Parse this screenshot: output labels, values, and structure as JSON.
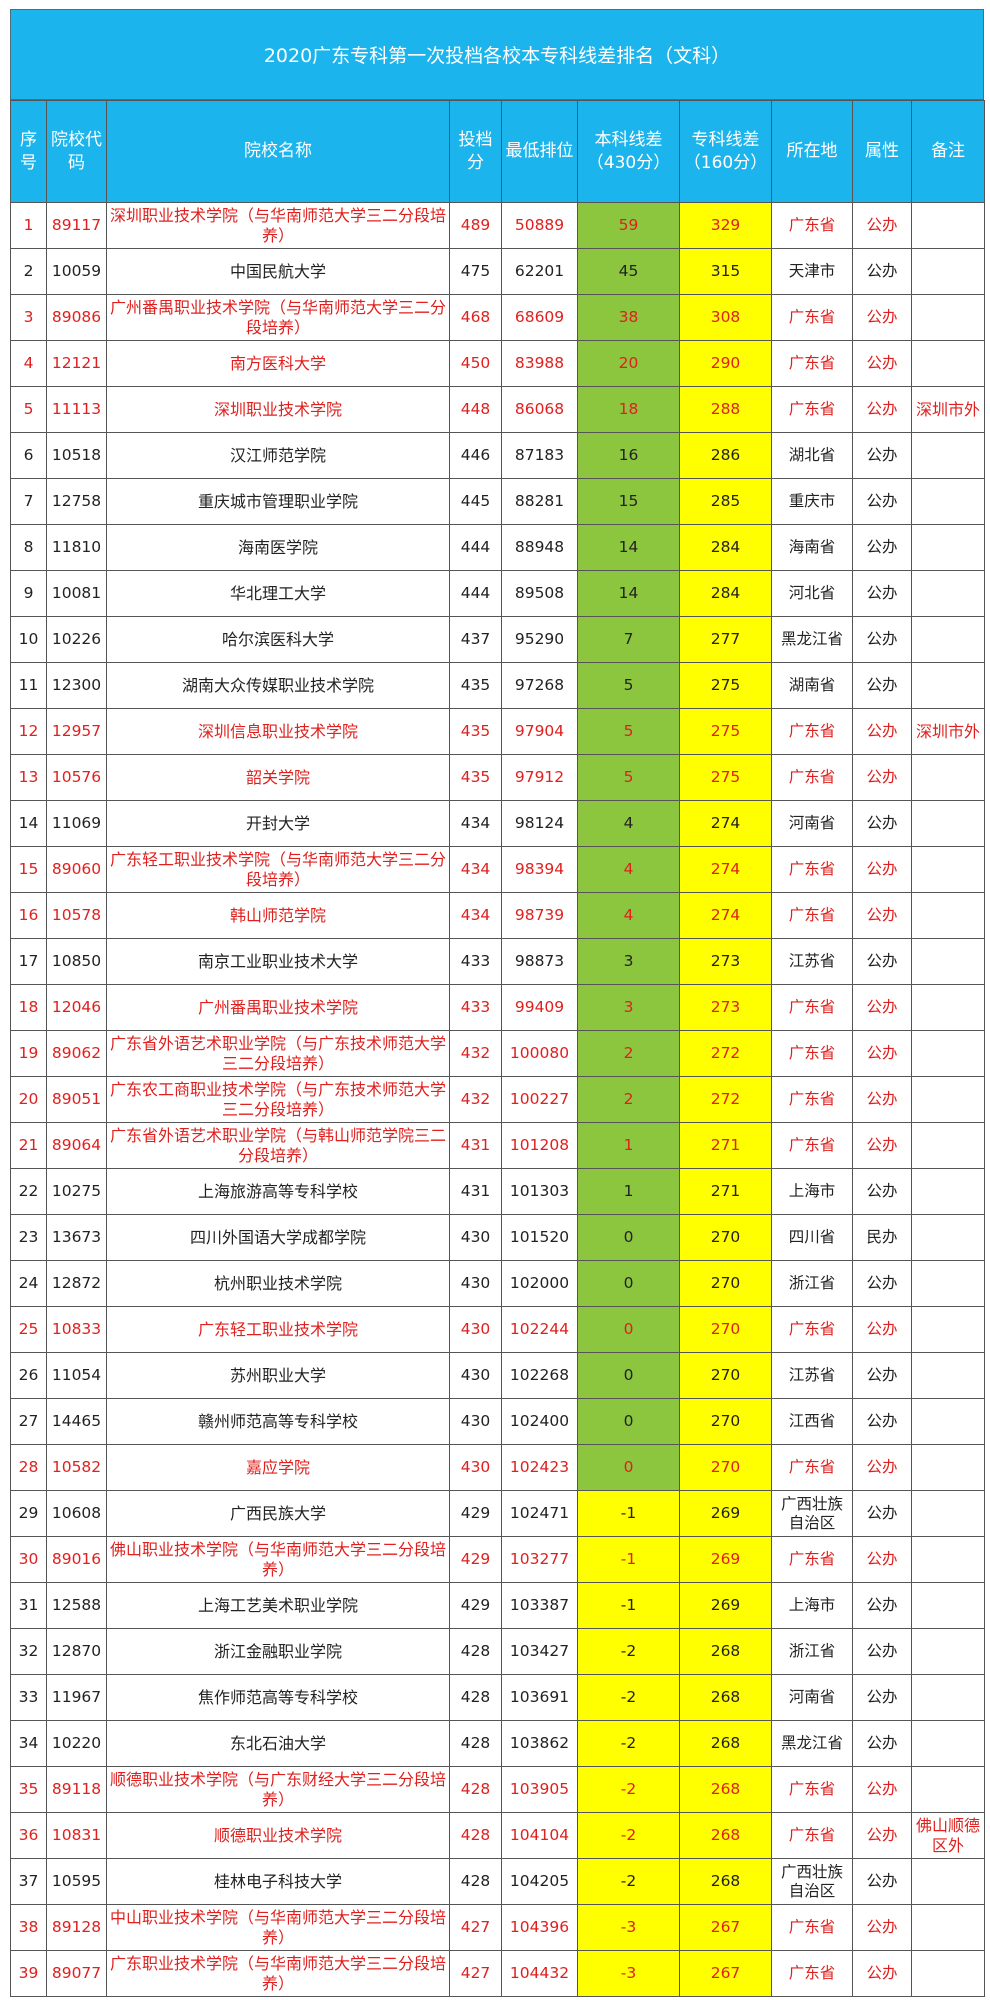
{
  "title": "2020广东专科第一次投档各校本专科线差排名（文科）",
  "headers": [
    "序号",
    "院校代码",
    "院校名称",
    "投档分",
    "最低排位",
    "本科线差（430分）",
    "专科线差（160分）",
    "所在地",
    "属性",
    "备注"
  ],
  "colors": {
    "header_bg": "#1cb4ec",
    "positive_diff_bg": "#8cc63e",
    "diff_bg": "#ffff00",
    "highlight_text": "#e0201e"
  },
  "rows": [
    {
      "no": "1",
      "code": "89117",
      "name": "深圳职业技术学院（与华南师范大学三二分段培养）",
      "score": "489",
      "rank": "50889",
      "ben": "59",
      "zhuan": "329",
      "loc": "广东省",
      "type": "公办",
      "note": "",
      "red": true
    },
    {
      "no": "2",
      "code": "10059",
      "name": "中国民航大学",
      "score": "475",
      "rank": "62201",
      "ben": "45",
      "zhuan": "315",
      "loc": "天津市",
      "type": "公办",
      "note": "",
      "red": false
    },
    {
      "no": "3",
      "code": "89086",
      "name": "广州番禺职业技术学院（与华南师范大学三二分段培养）",
      "score": "468",
      "rank": "68609",
      "ben": "38",
      "zhuan": "308",
      "loc": "广东省",
      "type": "公办",
      "note": "",
      "red": true
    },
    {
      "no": "4",
      "code": "12121",
      "name": "南方医科大学",
      "score": "450",
      "rank": "83988",
      "ben": "20",
      "zhuan": "290",
      "loc": "广东省",
      "type": "公办",
      "note": "",
      "red": true
    },
    {
      "no": "5",
      "code": "11113",
      "name": "深圳职业技术学院",
      "score": "448",
      "rank": "86068",
      "ben": "18",
      "zhuan": "288",
      "loc": "广东省",
      "type": "公办",
      "note": "深圳市外",
      "red": true
    },
    {
      "no": "6",
      "code": "10518",
      "name": "汉江师范学院",
      "score": "446",
      "rank": "87183",
      "ben": "16",
      "zhuan": "286",
      "loc": "湖北省",
      "type": "公办",
      "note": "",
      "red": false
    },
    {
      "no": "7",
      "code": "12758",
      "name": "重庆城市管理职业学院",
      "score": "445",
      "rank": "88281",
      "ben": "15",
      "zhuan": "285",
      "loc": "重庆市",
      "type": "公办",
      "note": "",
      "red": false
    },
    {
      "no": "8",
      "code": "11810",
      "name": "海南医学院",
      "score": "444",
      "rank": "88948",
      "ben": "14",
      "zhuan": "284",
      "loc": "海南省",
      "type": "公办",
      "note": "",
      "red": false
    },
    {
      "no": "9",
      "code": "10081",
      "name": "华北理工大学",
      "score": "444",
      "rank": "89508",
      "ben": "14",
      "zhuan": "284",
      "loc": "河北省",
      "type": "公办",
      "note": "",
      "red": false
    },
    {
      "no": "10",
      "code": "10226",
      "name": "哈尔滨医科大学",
      "score": "437",
      "rank": "95290",
      "ben": "7",
      "zhuan": "277",
      "loc": "黑龙江省",
      "type": "公办",
      "note": "",
      "red": false
    },
    {
      "no": "11",
      "code": "12300",
      "name": "湖南大众传媒职业技术学院",
      "score": "435",
      "rank": "97268",
      "ben": "5",
      "zhuan": "275",
      "loc": "湖南省",
      "type": "公办",
      "note": "",
      "red": false
    },
    {
      "no": "12",
      "code": "12957",
      "name": "深圳信息职业技术学院",
      "score": "435",
      "rank": "97904",
      "ben": "5",
      "zhuan": "275",
      "loc": "广东省",
      "type": "公办",
      "note": "深圳市外",
      "red": true
    },
    {
      "no": "13",
      "code": "10576",
      "name": "韶关学院",
      "score": "435",
      "rank": "97912",
      "ben": "5",
      "zhuan": "275",
      "loc": "广东省",
      "type": "公办",
      "note": "",
      "red": true
    },
    {
      "no": "14",
      "code": "11069",
      "name": "开封大学",
      "score": "434",
      "rank": "98124",
      "ben": "4",
      "zhuan": "274",
      "loc": "河南省",
      "type": "公办",
      "note": "",
      "red": false
    },
    {
      "no": "15",
      "code": "89060",
      "name": "广东轻工职业技术学院（与华南师范大学三二分段培养）",
      "score": "434",
      "rank": "98394",
      "ben": "4",
      "zhuan": "274",
      "loc": "广东省",
      "type": "公办",
      "note": "",
      "red": true
    },
    {
      "no": "16",
      "code": "10578",
      "name": "韩山师范学院",
      "score": "434",
      "rank": "98739",
      "ben": "4",
      "zhuan": "274",
      "loc": "广东省",
      "type": "公办",
      "note": "",
      "red": true
    },
    {
      "no": "17",
      "code": "10850",
      "name": "南京工业职业技术大学",
      "score": "433",
      "rank": "98873",
      "ben": "3",
      "zhuan": "273",
      "loc": "江苏省",
      "type": "公办",
      "note": "",
      "red": false
    },
    {
      "no": "18",
      "code": "12046",
      "name": "广州番禺职业技术学院",
      "score": "433",
      "rank": "99409",
      "ben": "3",
      "zhuan": "273",
      "loc": "广东省",
      "type": "公办",
      "note": "",
      "red": true
    },
    {
      "no": "19",
      "code": "89062",
      "name": "广东省外语艺术职业学院（与广东技术师范大学三二分段培养）",
      "score": "432",
      "rank": "100080",
      "ben": "2",
      "zhuan": "272",
      "loc": "广东省",
      "type": "公办",
      "note": "",
      "red": true
    },
    {
      "no": "20",
      "code": "89051",
      "name": "广东农工商职业技术学院（与广东技术师范大学三二分段培养）",
      "score": "432",
      "rank": "100227",
      "ben": "2",
      "zhuan": "272",
      "loc": "广东省",
      "type": "公办",
      "note": "",
      "red": true
    },
    {
      "no": "21",
      "code": "89064",
      "name": "广东省外语艺术职业学院（与韩山师范学院三二分段培养）",
      "score": "431",
      "rank": "101208",
      "ben": "1",
      "zhuan": "271",
      "loc": "广东省",
      "type": "公办",
      "note": "",
      "red": true
    },
    {
      "no": "22",
      "code": "10275",
      "name": "上海旅游高等专科学校",
      "score": "431",
      "rank": "101303",
      "ben": "1",
      "zhuan": "271",
      "loc": "上海市",
      "type": "公办",
      "note": "",
      "red": false
    },
    {
      "no": "23",
      "code": "13673",
      "name": "四川外国语大学成都学院",
      "score": "430",
      "rank": "101520",
      "ben": "0",
      "zhuan": "270",
      "loc": "四川省",
      "type": "民办",
      "note": "",
      "red": false
    },
    {
      "no": "24",
      "code": "12872",
      "name": "杭州职业技术学院",
      "score": "430",
      "rank": "102000",
      "ben": "0",
      "zhuan": "270",
      "loc": "浙江省",
      "type": "公办",
      "note": "",
      "red": false
    },
    {
      "no": "25",
      "code": "10833",
      "name": "广东轻工职业技术学院",
      "score": "430",
      "rank": "102244",
      "ben": "0",
      "zhuan": "270",
      "loc": "广东省",
      "type": "公办",
      "note": "",
      "red": true
    },
    {
      "no": "26",
      "code": "11054",
      "name": "苏州职业大学",
      "score": "430",
      "rank": "102268",
      "ben": "0",
      "zhuan": "270",
      "loc": "江苏省",
      "type": "公办",
      "note": "",
      "red": false
    },
    {
      "no": "27",
      "code": "14465",
      "name": "赣州师范高等专科学校",
      "score": "430",
      "rank": "102400",
      "ben": "0",
      "zhuan": "270",
      "loc": "江西省",
      "type": "公办",
      "note": "",
      "red": false
    },
    {
      "no": "28",
      "code": "10582",
      "name": "嘉应学院",
      "score": "430",
      "rank": "102423",
      "ben": "0",
      "zhuan": "270",
      "loc": "广东省",
      "type": "公办",
      "note": "",
      "red": true
    },
    {
      "no": "29",
      "code": "10608",
      "name": "广西民族大学",
      "score": "429",
      "rank": "102471",
      "ben": "-1",
      "zhuan": "269",
      "loc": "广西壮族自治区",
      "type": "公办",
      "note": "",
      "red": false
    },
    {
      "no": "30",
      "code": "89016",
      "name": "佛山职业技术学院（与华南师范大学三二分段培养）",
      "score": "429",
      "rank": "103277",
      "ben": "-1",
      "zhuan": "269",
      "loc": "广东省",
      "type": "公办",
      "note": "",
      "red": true
    },
    {
      "no": "31",
      "code": "12588",
      "name": "上海工艺美术职业学院",
      "score": "429",
      "rank": "103387",
      "ben": "-1",
      "zhuan": "269",
      "loc": "上海市",
      "type": "公办",
      "note": "",
      "red": false
    },
    {
      "no": "32",
      "code": "12870",
      "name": "浙江金融职业学院",
      "score": "428",
      "rank": "103427",
      "ben": "-2",
      "zhuan": "268",
      "loc": "浙江省",
      "type": "公办",
      "note": "",
      "red": false
    },
    {
      "no": "33",
      "code": "11967",
      "name": "焦作师范高等专科学校",
      "score": "428",
      "rank": "103691",
      "ben": "-2",
      "zhuan": "268",
      "loc": "河南省",
      "type": "公办",
      "note": "",
      "red": false
    },
    {
      "no": "34",
      "code": "10220",
      "name": "东北石油大学",
      "score": "428",
      "rank": "103862",
      "ben": "-2",
      "zhuan": "268",
      "loc": "黑龙江省",
      "type": "公办",
      "note": "",
      "red": false
    },
    {
      "no": "35",
      "code": "89118",
      "name": "顺德职业技术学院（与广东财经大学三二分段培养）",
      "score": "428",
      "rank": "103905",
      "ben": "-2",
      "zhuan": "268",
      "loc": "广东省",
      "type": "公办",
      "note": "",
      "red": true
    },
    {
      "no": "36",
      "code": "10831",
      "name": "顺德职业技术学院",
      "score": "428",
      "rank": "104104",
      "ben": "-2",
      "zhuan": "268",
      "loc": "广东省",
      "type": "公办",
      "note": "佛山顺德区外",
      "red": true
    },
    {
      "no": "37",
      "code": "10595",
      "name": "桂林电子科技大学",
      "score": "428",
      "rank": "104205",
      "ben": "-2",
      "zhuan": "268",
      "loc": "广西壮族自治区",
      "type": "公办",
      "note": "",
      "red": false
    },
    {
      "no": "38",
      "code": "89128",
      "name": "中山职业技术学院（与华南师范大学三二分段培养）",
      "score": "427",
      "rank": "104396",
      "ben": "-3",
      "zhuan": "267",
      "loc": "广东省",
      "type": "公办",
      "note": "",
      "red": true
    },
    {
      "no": "39",
      "code": "89077",
      "name": "广东职业技术学院（与华南师范大学三二分段培养）",
      "score": "427",
      "rank": "104432",
      "ben": "-3",
      "zhuan": "267",
      "loc": "广东省",
      "type": "公办",
      "note": "",
      "red": true
    }
  ]
}
